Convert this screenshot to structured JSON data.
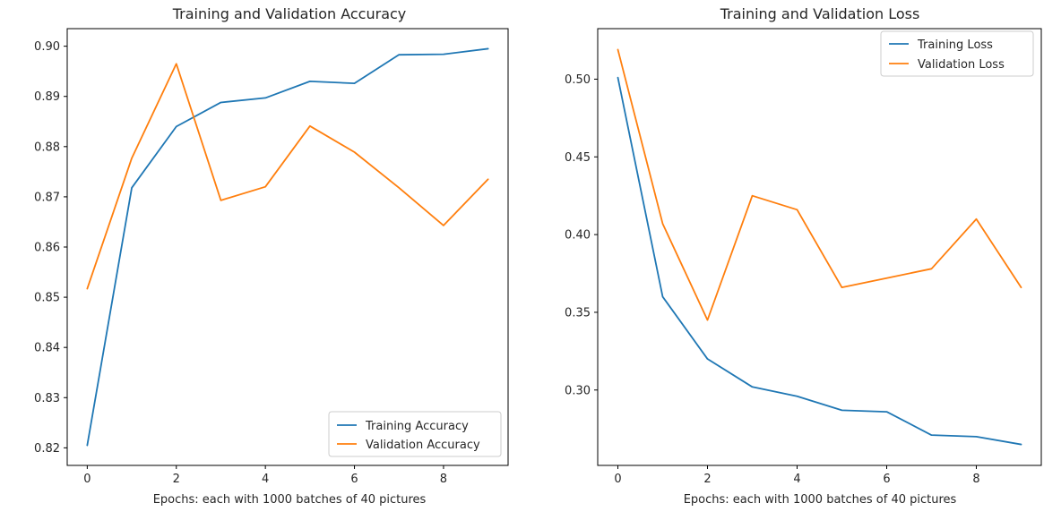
{
  "chart_data": [
    {
      "type": "line",
      "title": "Training and Validation Accuracy",
      "xlabel": "Epochs: each with 1000 batches of 40 pictures",
      "ylabel": "",
      "x": [
        0,
        1,
        2,
        3,
        4,
        5,
        6,
        7,
        8,
        9
      ],
      "xlim": [
        -0.45,
        9.45
      ],
      "ylim": [
        0.8165,
        0.9035
      ],
      "xticks": [
        0,
        2,
        4,
        6,
        8
      ],
      "xtick_labels": [
        "0",
        "2",
        "4",
        "6",
        "8"
      ],
      "yticks": [
        0.82,
        0.83,
        0.84,
        0.85,
        0.86,
        0.87,
        0.88,
        0.89,
        0.9
      ],
      "ytick_labels": [
        "0.82",
        "0.83",
        "0.84",
        "0.85",
        "0.86",
        "0.87",
        "0.88",
        "0.89",
        "0.90"
      ],
      "legend_position": "lower-right",
      "grid": false,
      "series": [
        {
          "name": "Training Accuracy",
          "color": "#1f77b4",
          "values": [
            0.8205,
            0.8718,
            0.884,
            0.8888,
            0.8897,
            0.893,
            0.8926,
            0.8983,
            0.8984,
            0.8995
          ]
        },
        {
          "name": "Validation Accuracy",
          "color": "#ff7f0e",
          "values": [
            0.8517,
            0.8777,
            0.8965,
            0.8693,
            0.872,
            0.8841,
            0.8789,
            0.8718,
            0.8643,
            0.8735
          ]
        }
      ]
    },
    {
      "type": "line",
      "title": "Training and Validation Loss",
      "xlabel": "Epochs: each with 1000 batches of 40 pictures",
      "ylabel": "",
      "x": [
        0,
        1,
        2,
        3,
        4,
        5,
        6,
        7,
        8,
        9
      ],
      "xlim": [
        -0.45,
        9.45
      ],
      "ylim": [
        0.2515,
        0.5325
      ],
      "xticks": [
        0,
        2,
        4,
        6,
        8
      ],
      "xtick_labels": [
        "0",
        "2",
        "4",
        "6",
        "8"
      ],
      "yticks": [
        0.3,
        0.35,
        0.4,
        0.45,
        0.5
      ],
      "ytick_labels": [
        "0.30",
        "0.35",
        "0.40",
        "0.45",
        "0.50"
      ],
      "legend_position": "upper-right",
      "grid": false,
      "series": [
        {
          "name": "Training Loss",
          "color": "#1f77b4",
          "values": [
            0.501,
            0.36,
            0.32,
            0.302,
            0.296,
            0.287,
            0.286,
            0.271,
            0.27,
            0.265
          ]
        },
        {
          "name": "Validation Loss",
          "color": "#ff7f0e",
          "values": [
            0.519,
            0.407,
            0.345,
            0.425,
            0.416,
            0.366,
            0.372,
            0.378,
            0.41,
            0.366
          ]
        }
      ]
    }
  ]
}
